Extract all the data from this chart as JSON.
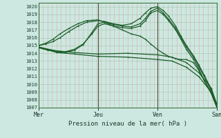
{
  "title": "",
  "xlabel": "Pression niveau de la mer( hPa )",
  "bg_color": "#cce8e0",
  "plot_bg_color": "#cce8e0",
  "grid_color_h": "#aaccbb",
  "grid_color_v": "#ddaaaa",
  "line_color": "#1a5c28",
  "ylim": [
    1007,
    1020.5
  ],
  "ytick_min": 1007,
  "ytick_max": 1020,
  "day_labels": [
    "Mer",
    "Jeu",
    "Ven",
    "Sam"
  ],
  "day_positions": [
    0.0,
    0.333,
    0.667,
    1.0
  ],
  "lines": [
    {
      "xn": [
        0.0,
        0.05,
        0.1,
        0.15,
        0.2,
        0.25,
        0.3,
        0.333,
        0.37,
        0.42,
        0.47,
        0.52,
        0.57,
        0.6,
        0.63,
        0.667,
        0.7,
        0.73,
        0.77,
        0.8,
        0.83,
        0.87,
        0.9,
        0.93,
        0.97,
        1.0
      ],
      "y": [
        1014.8,
        1014.5,
        1014.3,
        1014.2,
        1014.5,
        1015.2,
        1016.5,
        1017.5,
        1017.8,
        1017.5,
        1017.3,
        1017.2,
        1017.5,
        1018.2,
        1019.2,
        1019.5,
        1019.0,
        1018.2,
        1017.0,
        1015.8,
        1014.5,
        1013.2,
        1012.0,
        1010.5,
        1008.8,
        1007.1
      ]
    },
    {
      "xn": [
        0.0,
        0.05,
        0.1,
        0.15,
        0.2,
        0.25,
        0.3,
        0.333,
        0.37,
        0.42,
        0.47,
        0.52,
        0.57,
        0.6,
        0.63,
        0.667,
        0.7,
        0.73,
        0.77,
        0.8,
        0.83,
        0.87,
        0.9,
        0.93,
        0.97,
        1.0
      ],
      "y": [
        1014.7,
        1014.4,
        1014.2,
        1014.1,
        1014.4,
        1015.1,
        1016.7,
        1017.8,
        1018.0,
        1017.7,
        1017.5,
        1017.4,
        1017.8,
        1018.5,
        1019.4,
        1019.8,
        1019.2,
        1018.4,
        1017.2,
        1016.0,
        1014.8,
        1013.5,
        1012.3,
        1011.0,
        1009.2,
        1007.2
      ]
    },
    {
      "xn": [
        0.0,
        0.1,
        0.2,
        0.333,
        0.5,
        0.667,
        0.75,
        0.83,
        0.9,
        0.97,
        1.0
      ],
      "y": [
        1014.8,
        1014.3,
        1014.1,
        1013.9,
        1014.0,
        1013.8,
        1013.5,
        1012.8,
        1011.5,
        1009.5,
        1007.5
      ]
    },
    {
      "xn": [
        0.0,
        0.1,
        0.2,
        0.333,
        0.5,
        0.667,
        0.75,
        0.83,
        0.9,
        0.97,
        1.0
      ],
      "y": [
        1014.8,
        1014.1,
        1013.9,
        1013.6,
        1013.5,
        1013.2,
        1013.0,
        1012.2,
        1011.0,
        1009.0,
        1007.2
      ]
    },
    {
      "xn": [
        0.0,
        0.04,
        0.08,
        0.12,
        0.17,
        0.22,
        0.27,
        0.333,
        0.37,
        0.42,
        0.47,
        0.52,
        0.57,
        0.6,
        0.63,
        0.667,
        0.7,
        0.73,
        0.77,
        0.8,
        0.83,
        0.87,
        0.9,
        0.93,
        0.97,
        1.0
      ],
      "y": [
        1015.0,
        1015.2,
        1015.5,
        1016.0,
        1016.8,
        1017.5,
        1018.0,
        1018.2,
        1018.1,
        1017.8,
        1017.6,
        1017.8,
        1018.5,
        1019.2,
        1019.8,
        1020.0,
        1019.5,
        1018.8,
        1017.5,
        1016.2,
        1015.0,
        1013.7,
        1012.5,
        1011.2,
        1009.4,
        1007.5
      ]
    },
    {
      "xn": [
        0.0,
        0.04,
        0.08,
        0.12,
        0.17,
        0.22,
        0.27,
        0.333,
        0.37,
        0.42,
        0.47,
        0.52,
        0.57,
        0.6,
        0.63,
        0.667,
        0.7,
        0.73,
        0.77,
        0.8,
        0.83,
        0.87,
        0.9,
        0.93,
        0.97,
        1.0
      ],
      "y": [
        1015.0,
        1015.3,
        1015.8,
        1016.5,
        1017.2,
        1017.8,
        1018.2,
        1018.3,
        1018.0,
        1017.5,
        1017.0,
        1016.5,
        1016.2,
        1015.8,
        1015.2,
        1014.5,
        1014.0,
        1013.6,
        1013.3,
        1013.2,
        1013.2,
        1012.8,
        1011.8,
        1010.5,
        1009.0,
        1007.5
      ]
    }
  ]
}
